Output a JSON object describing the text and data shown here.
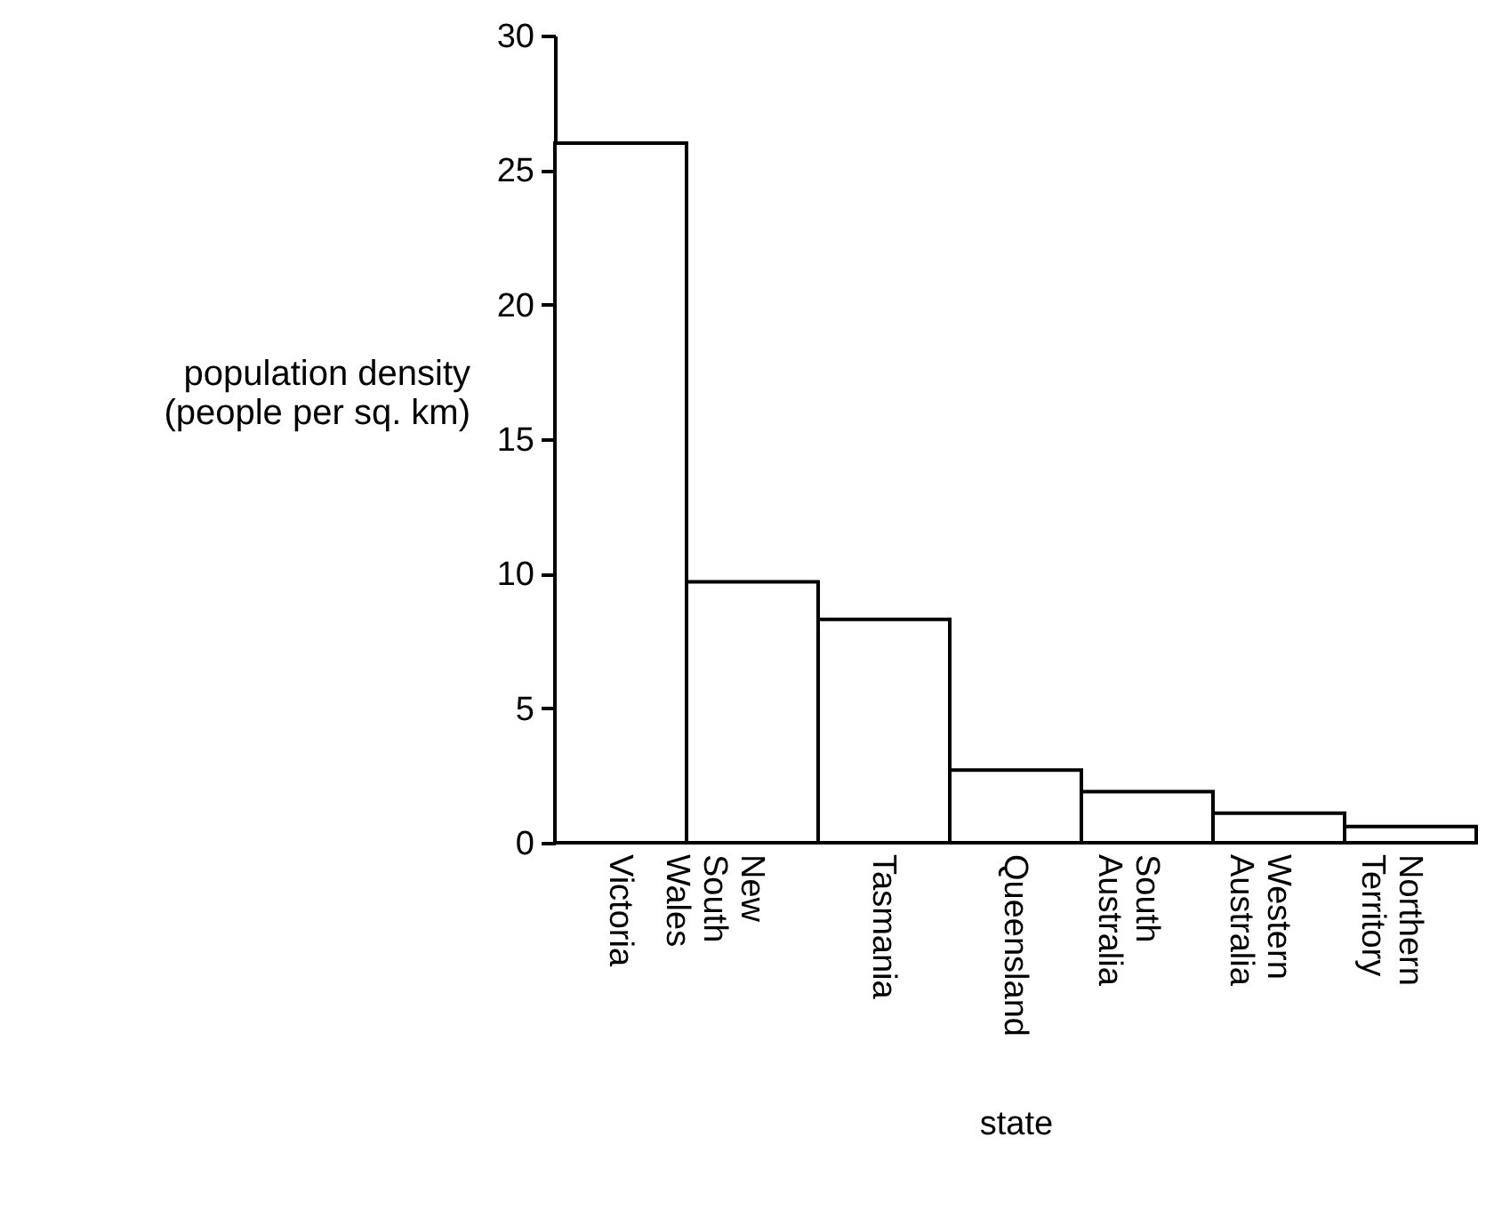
{
  "chart_data": {
    "type": "bar",
    "xlabel": "state",
    "ylabel": "population density (people per sq. km)",
    "categories": [
      "Victoria",
      "New South Wales",
      "Tasmania",
      "Queensland",
      "South Australia",
      "Western Australia",
      "Northern Territory"
    ],
    "values": [
      26.0,
      9.7,
      8.3,
      2.7,
      1.9,
      1.1,
      0.6
    ],
    "color": "#ffffff",
    "ylim": [
      0,
      30
    ],
    "yticks": [
      0,
      5,
      10,
      15,
      20,
      25,
      30
    ],
    "grid": false
  }
}
